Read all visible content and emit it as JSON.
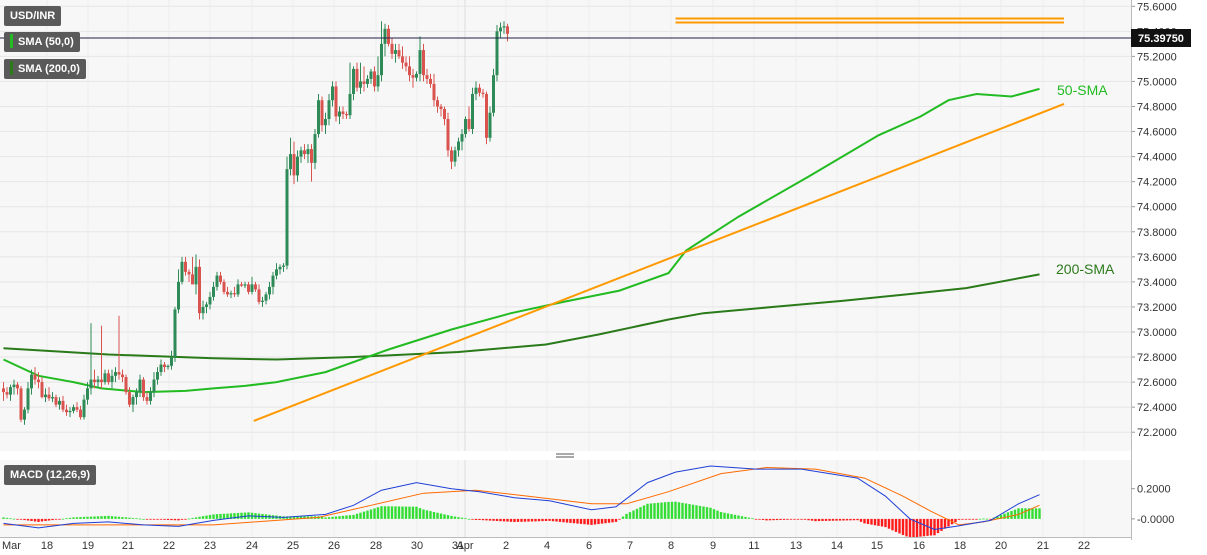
{
  "symbol": "USD/INR",
  "indicators": {
    "sma50": "SMA (50,0)",
    "sma200": "SMA (200,0)",
    "macd": "MACD (12,26,9)"
  },
  "last_price": "75.39750",
  "annotations": {
    "sma50": "50-SMA",
    "sma200": "200-SMA"
  },
  "colors": {
    "up": "#2e8b57",
    "down": "#d9534f",
    "sma50": "#22bb22",
    "sma200": "#2a7a1a",
    "trendline": "#ff9900",
    "macd_line": "#1f3fd6",
    "signal_line": "#ff6a00",
    "hist_pos": "#33dd33",
    "hist_neg": "#ff1a1a"
  },
  "chart_data": {
    "type": "candlestick",
    "title": "USD/INR",
    "price_axis": {
      "ylim": [
        72.05,
        75.65
      ],
      "ticks": [
        "75.6000",
        "75.4000",
        "75.2000",
        "75.0000",
        "74.8000",
        "74.6000",
        "74.4000",
        "74.2000",
        "74.0000",
        "73.8000",
        "73.6000",
        "73.4000",
        "73.2000",
        "73.0000",
        "72.8000",
        "72.6000",
        "72.4000",
        "72.2000"
      ]
    },
    "x_axis": {
      "labels": [
        "Mar",
        "18",
        "19",
        "21",
        "22",
        "23",
        "24",
        "25",
        "26",
        "28",
        "30",
        "31",
        "Apr",
        "2",
        "4",
        "6",
        "7",
        "8",
        "9",
        "11",
        "13",
        "14",
        "15",
        "16",
        "18",
        "20",
        "21",
        "22"
      ]
    },
    "candles": [
      [
        72.55,
        72.6,
        72.45,
        72.52
      ],
      [
        72.52,
        72.56,
        72.47,
        72.5
      ],
      [
        72.5,
        72.58,
        72.45,
        72.56
      ],
      [
        72.56,
        72.62,
        72.5,
        72.58
      ],
      [
        72.58,
        72.6,
        72.5,
        72.55
      ],
      [
        72.55,
        72.57,
        72.28,
        72.3
      ],
      [
        72.3,
        72.4,
        72.26,
        72.38
      ],
      [
        72.38,
        72.6,
        72.35,
        72.55
      ],
      [
        72.55,
        72.7,
        72.5,
        72.66
      ],
      [
        72.66,
        72.72,
        72.58,
        72.62
      ],
      [
        72.62,
        72.68,
        72.55,
        72.6
      ],
      [
        72.6,
        72.64,
        72.47,
        72.48
      ],
      [
        72.48,
        72.55,
        72.44,
        72.5
      ],
      [
        72.5,
        72.56,
        72.45,
        72.47
      ],
      [
        72.47,
        72.52,
        72.44,
        72.48
      ],
      [
        72.48,
        72.5,
        72.4,
        72.42
      ],
      [
        72.42,
        72.48,
        72.38,
        72.45
      ],
      [
        72.45,
        72.49,
        72.36,
        72.38
      ],
      [
        72.38,
        72.42,
        72.33,
        72.36
      ],
      [
        72.36,
        72.4,
        72.32,
        72.37
      ],
      [
        72.37,
        72.42,
        72.35,
        72.4
      ],
      [
        72.4,
        72.44,
        72.36,
        72.38
      ],
      [
        72.38,
        72.41,
        72.3,
        72.32
      ],
      [
        72.32,
        72.5,
        72.3,
        72.46
      ],
      [
        72.46,
        72.6,
        72.42,
        72.55
      ],
      [
        72.55,
        73.07,
        72.5,
        72.62
      ],
      [
        72.62,
        72.7,
        72.55,
        72.6
      ],
      [
        72.6,
        72.65,
        72.55,
        72.62
      ],
      [
        72.62,
        73.05,
        72.55,
        72.6
      ],
      [
        72.6,
        72.7,
        72.58,
        72.67
      ],
      [
        72.67,
        72.7,
        72.58,
        72.6
      ],
      [
        72.6,
        72.7,
        72.55,
        72.65
      ],
      [
        72.65,
        72.72,
        72.6,
        72.68
      ],
      [
        72.68,
        73.13,
        72.62,
        72.66
      ],
      [
        72.66,
        72.7,
        72.6,
        72.64
      ],
      [
        72.64,
        72.66,
        72.5,
        72.52
      ],
      [
        72.52,
        72.56,
        72.4,
        72.42
      ],
      [
        72.42,
        72.5,
        72.36,
        72.48
      ],
      [
        72.48,
        72.55,
        72.42,
        72.52
      ],
      [
        72.52,
        72.66,
        72.48,
        72.62
      ],
      [
        72.62,
        72.64,
        72.45,
        72.48
      ],
      [
        72.48,
        72.52,
        72.42,
        72.45
      ],
      [
        72.45,
        72.56,
        72.42,
        72.52
      ],
      [
        72.52,
        72.68,
        72.48,
        72.62
      ],
      [
        72.62,
        72.72,
        72.58,
        72.68
      ],
      [
        72.68,
        72.78,
        72.65,
        72.74
      ],
      [
        72.74,
        72.76,
        72.68,
        72.72
      ],
      [
        72.72,
        72.74,
        72.7,
        72.73
      ],
      [
        72.73,
        72.85,
        72.7,
        72.8
      ],
      [
        72.8,
        73.2,
        72.76,
        73.18
      ],
      [
        73.18,
        73.5,
        73.15,
        73.4
      ],
      [
        73.4,
        73.6,
        73.38,
        73.56
      ],
      [
        73.56,
        73.6,
        73.45,
        73.48
      ],
      [
        73.48,
        73.5,
        73.4,
        73.46
      ],
      [
        73.46,
        73.6,
        73.4,
        73.38
      ],
      [
        73.38,
        73.62,
        73.3,
        73.52
      ],
      [
        73.52,
        73.58,
        73.1,
        73.15
      ],
      [
        73.15,
        73.25,
        73.1,
        73.2
      ],
      [
        73.2,
        73.24,
        73.15,
        73.22
      ],
      [
        73.22,
        73.32,
        73.18,
        73.28
      ],
      [
        73.28,
        73.4,
        73.25,
        73.36
      ],
      [
        73.36,
        73.48,
        73.33,
        73.45
      ],
      [
        73.45,
        73.48,
        73.38,
        73.4
      ],
      [
        73.4,
        73.42,
        73.3,
        73.32
      ],
      [
        73.32,
        73.36,
        73.28,
        73.3
      ],
      [
        73.3,
        73.33,
        73.27,
        73.31
      ],
      [
        73.31,
        73.36,
        73.28,
        73.3
      ],
      [
        73.3,
        73.42,
        73.28,
        73.38
      ],
      [
        73.38,
        73.4,
        73.36,
        73.37
      ],
      [
        73.37,
        73.4,
        73.35,
        73.38
      ],
      [
        73.38,
        73.4,
        73.3,
        73.32
      ],
      [
        73.32,
        73.44,
        73.3,
        73.38
      ],
      [
        73.38,
        73.4,
        73.32,
        73.34
      ],
      [
        73.34,
        73.38,
        73.22,
        73.24
      ],
      [
        73.24,
        73.28,
        73.2,
        73.25
      ],
      [
        73.25,
        73.32,
        73.22,
        73.3
      ],
      [
        73.3,
        73.4,
        73.26,
        73.36
      ],
      [
        73.36,
        73.48,
        73.3,
        73.45
      ],
      [
        73.45,
        73.55,
        73.42,
        73.5
      ],
      [
        73.5,
        73.54,
        73.46,
        73.52
      ],
      [
        73.52,
        73.55,
        73.48,
        73.53
      ],
      [
        73.53,
        74.4,
        73.5,
        74.3
      ],
      [
        74.3,
        74.55,
        74.25,
        74.42
      ],
      [
        74.42,
        74.52,
        74.18,
        74.25
      ],
      [
        74.25,
        74.45,
        74.2,
        74.4
      ],
      [
        74.4,
        74.48,
        74.35,
        74.45
      ],
      [
        74.45,
        74.5,
        74.38,
        74.42
      ],
      [
        74.42,
        74.5,
        74.35,
        74.46
      ],
      [
        74.46,
        74.5,
        74.2,
        74.35
      ],
      [
        74.35,
        74.62,
        74.3,
        74.58
      ],
      [
        74.58,
        74.9,
        74.55,
        74.85
      ],
      [
        74.85,
        74.88,
        74.6,
        74.65
      ],
      [
        74.65,
        74.75,
        74.58,
        74.7
      ],
      [
        74.7,
        74.9,
        74.65,
        74.85
      ],
      [
        74.85,
        75.0,
        74.8,
        74.96
      ],
      [
        74.96,
        75.0,
        74.68,
        74.72
      ],
      [
        74.72,
        74.8,
        74.66,
        74.76
      ],
      [
        74.76,
        74.8,
        74.7,
        74.74
      ],
      [
        74.74,
        74.76,
        74.7,
        74.73
      ],
      [
        74.73,
        75.15,
        74.7,
        74.9
      ],
      [
        74.9,
        75.12,
        74.85,
        75.1
      ],
      [
        75.1,
        75.15,
        74.92,
        74.95
      ],
      [
        74.95,
        75.15,
        74.9,
        75.0
      ],
      [
        75.0,
        75.12,
        74.92,
        74.98
      ],
      [
        74.98,
        75.05,
        74.95,
        75.02
      ],
      [
        75.02,
        75.1,
        74.98,
        75.08
      ],
      [
        75.08,
        75.12,
        74.92,
        74.96
      ],
      [
        74.96,
        75.2,
        74.92,
        75.05
      ],
      [
        75.05,
        75.48,
        75.0,
        75.3
      ],
      [
        75.3,
        75.46,
        75.2,
        75.42
      ],
      [
        75.42,
        75.45,
        75.28,
        75.3
      ],
      [
        75.3,
        75.35,
        75.18,
        75.22
      ],
      [
        75.22,
        75.3,
        75.15,
        75.25
      ],
      [
        75.25,
        75.3,
        75.18,
        75.2
      ],
      [
        75.2,
        75.28,
        75.1,
        75.15
      ],
      [
        75.15,
        75.2,
        75.08,
        75.12
      ],
      [
        75.12,
        75.2,
        75.0,
        75.05
      ],
      [
        75.05,
        75.1,
        74.95,
        75.03
      ],
      [
        75.03,
        75.08,
        75.0,
        75.06
      ],
      [
        75.06,
        75.36,
        75.0,
        75.25
      ],
      [
        75.25,
        75.3,
        75.0,
        75.05
      ],
      [
        75.05,
        75.1,
        74.98,
        75.02
      ],
      [
        75.02,
        75.06,
        74.95,
        74.98
      ],
      [
        74.98,
        75.06,
        74.8,
        74.85
      ],
      [
        74.85,
        74.88,
        74.75,
        74.8
      ],
      [
        74.8,
        74.82,
        74.72,
        74.78
      ],
      [
        74.78,
        74.8,
        74.65,
        74.7
      ],
      [
        74.7,
        74.75,
        74.4,
        74.45
      ],
      [
        74.45,
        74.48,
        74.3,
        74.36
      ],
      [
        74.36,
        74.48,
        74.32,
        74.45
      ],
      [
        74.45,
        74.55,
        74.4,
        74.52
      ],
      [
        74.52,
        74.62,
        74.45,
        74.58
      ],
      [
        74.58,
        74.72,
        74.55,
        74.7
      ],
      [
        74.7,
        74.8,
        74.6,
        74.62
      ],
      [
        74.62,
        74.95,
        74.58,
        74.9
      ],
      [
        74.9,
        75.0,
        74.85,
        74.95
      ],
      [
        74.95,
        74.98,
        74.88,
        74.91
      ],
      [
        74.91,
        74.94,
        74.87,
        74.9
      ],
      [
        74.9,
        74.92,
        74.5,
        74.55
      ],
      [
        74.55,
        74.8,
        74.52,
        74.75
      ],
      [
        74.75,
        75.1,
        74.72,
        75.05
      ],
      [
        75.05,
        75.45,
        75.0,
        75.4
      ],
      [
        75.4,
        75.47,
        75.35,
        75.43
      ],
      [
        75.43,
        75.48,
        75.38,
        75.44
      ],
      [
        75.44,
        75.46,
        75.32,
        75.38
      ]
    ],
    "sma50": [
      [
        0,
        72.78
      ],
      [
        10,
        72.65
      ],
      [
        20,
        72.6
      ],
      [
        28,
        72.55
      ],
      [
        40,
        72.52
      ],
      [
        52,
        72.53
      ],
      [
        60,
        72.55
      ],
      [
        69,
        72.57
      ],
      [
        78,
        72.6
      ],
      [
        92,
        72.68
      ],
      [
        110,
        72.86
      ],
      [
        128,
        73.02
      ],
      [
        145,
        73.15
      ],
      [
        160,
        73.24
      ],
      [
        176,
        73.33
      ],
      [
        190,
        73.47
      ],
      [
        195,
        73.65
      ],
      [
        210,
        73.92
      ],
      [
        230,
        74.24
      ],
      [
        250,
        74.57
      ],
      [
        262,
        74.72
      ],
      [
        270,
        74.85
      ],
      [
        278,
        74.9
      ],
      [
        288,
        74.88
      ],
      [
        296,
        74.94
      ]
    ],
    "sma200": [
      [
        0,
        72.87
      ],
      [
        30,
        72.82
      ],
      [
        60,
        72.79
      ],
      [
        78,
        72.78
      ],
      [
        100,
        72.8
      ],
      [
        130,
        72.84
      ],
      [
        155,
        72.9
      ],
      [
        170,
        72.98
      ],
      [
        190,
        73.1
      ],
      [
        200,
        73.15
      ],
      [
        220,
        73.2
      ],
      [
        240,
        73.25
      ],
      [
        258,
        73.3
      ],
      [
        275,
        73.35
      ],
      [
        296,
        73.46
      ]
    ],
    "trendlines": [
      {
        "role": "ascending-support",
        "points": [
          [
            71.5,
            72.29
          ],
          [
            303,
            74.82
          ]
        ]
      },
      {
        "role": "resistance",
        "points": [
          [
            192,
            75.49
          ],
          [
            303,
            75.49
          ]
        ]
      }
    ],
    "macd": {
      "ylim": [
        -0.12,
        0.39
      ],
      "ticks": [
        "0.2000",
        "-0.0000"
      ],
      "macd_line": [
        [
          0,
          -0.03
        ],
        [
          10,
          -0.06
        ],
        [
          20,
          -0.03
        ],
        [
          30,
          -0.02
        ],
        [
          40,
          -0.04
        ],
        [
          50,
          -0.05
        ],
        [
          60,
          -0.01
        ],
        [
          70,
          0.02
        ],
        [
          80,
          0.01
        ],
        [
          92,
          0.03
        ],
        [
          100,
          0.09
        ],
        [
          108,
          0.19
        ],
        [
          118,
          0.24
        ],
        [
          128,
          0.2
        ],
        [
          136,
          0.18
        ],
        [
          146,
          0.14
        ],
        [
          156,
          0.12
        ],
        [
          168,
          0.06
        ],
        [
          175,
          0.08
        ],
        [
          184,
          0.24
        ],
        [
          192,
          0.31
        ],
        [
          202,
          0.35
        ],
        [
          215,
          0.33
        ],
        [
          228,
          0.33
        ],
        [
          244,
          0.27
        ],
        [
          252,
          0.15
        ],
        [
          259,
          0.0
        ],
        [
          266,
          -0.07
        ],
        [
          272,
          -0.05
        ],
        [
          282,
          -0.01
        ],
        [
          290,
          0.1
        ],
        [
          296,
          0.16
        ]
      ],
      "signal_line": [
        [
          0,
          -0.04
        ],
        [
          20,
          -0.04
        ],
        [
          40,
          -0.04
        ],
        [
          60,
          -0.04
        ],
        [
          72,
          -0.02
        ],
        [
          90,
          0.01
        ],
        [
          105,
          0.09
        ],
        [
          120,
          0.17
        ],
        [
          135,
          0.19
        ],
        [
          150,
          0.15
        ],
        [
          168,
          0.1
        ],
        [
          178,
          0.1
        ],
        [
          190,
          0.18
        ],
        [
          205,
          0.3
        ],
        [
          218,
          0.34
        ],
        [
          232,
          0.33
        ],
        [
          246,
          0.27
        ],
        [
          257,
          0.15
        ],
        [
          265,
          0.05
        ],
        [
          273,
          -0.04
        ],
        [
          280,
          -0.02
        ],
        [
          290,
          0.03
        ],
        [
          296,
          0.09
        ]
      ]
    }
  }
}
